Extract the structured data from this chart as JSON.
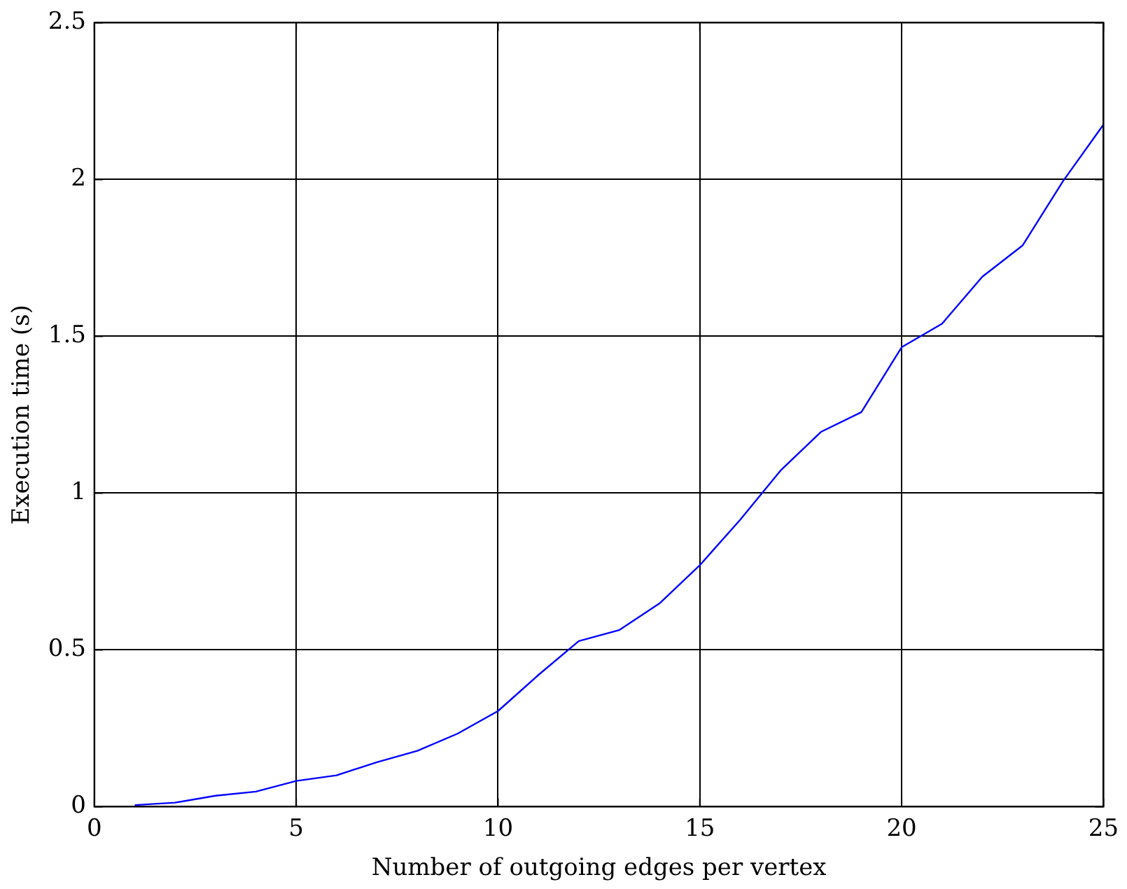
{
  "chart_data": {
    "type": "line",
    "xlabel": "Number of outgoing edges per vertex",
    "ylabel": "Execution time (s)",
    "xlim": [
      0,
      25
    ],
    "xticks": [
      0,
      5,
      10,
      15,
      20,
      25
    ],
    "ylim": [
      0,
      2.5
    ],
    "yticks": [
      0,
      0.5,
      1,
      1.5,
      2,
      2.5
    ],
    "grid": true,
    "x": [
      1,
      2,
      3,
      4,
      5,
      6,
      7,
      8,
      9,
      10,
      11,
      12,
      13,
      14,
      15,
      16,
      17,
      18,
      19,
      20,
      21,
      22,
      23,
      24,
      25
    ],
    "series": [
      {
        "color": "#0000ff",
        "values": [
          0.005,
          0.013,
          0.035,
          0.048,
          0.082,
          0.1,
          0.142,
          0.178,
          0.233,
          0.305,
          0.42,
          0.528,
          0.563,
          0.648,
          0.77,
          0.915,
          1.072,
          1.195,
          1.258,
          1.465,
          1.54,
          1.69,
          1.79,
          1.995,
          2.175
        ]
      }
    ]
  }
}
